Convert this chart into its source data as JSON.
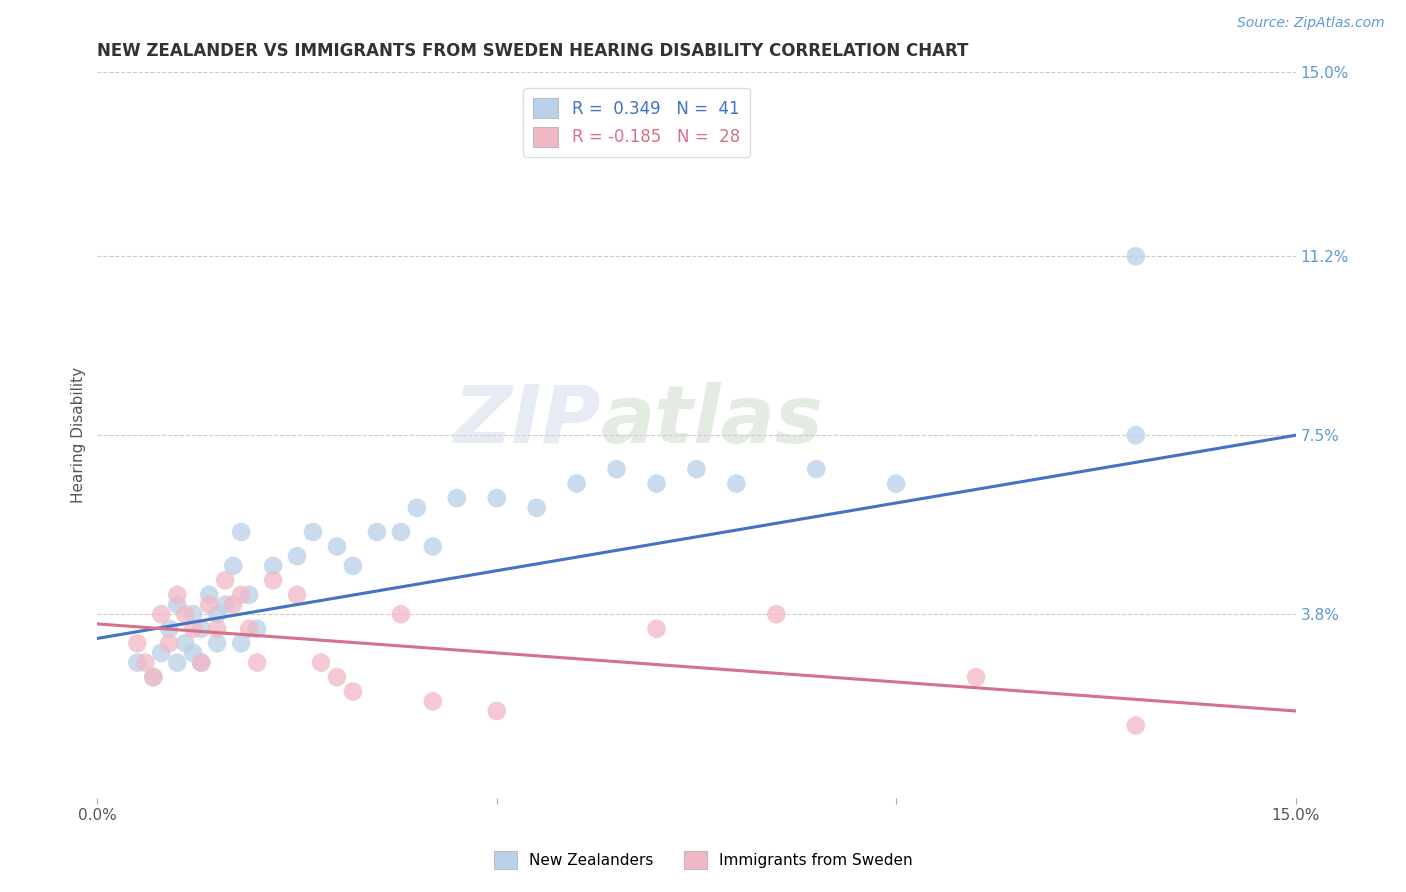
{
  "title": "NEW ZEALANDER VS IMMIGRANTS FROM SWEDEN HEARING DISABILITY CORRELATION CHART",
  "source": "Source: ZipAtlas.com",
  "ylabel": "Hearing Disability",
  "xlim": [
    0.0,
    0.15
  ],
  "ylim": [
    0.0,
    0.15
  ],
  "yticks_right": [
    0.15,
    0.112,
    0.075,
    0.038
  ],
  "ytick_labels_right": [
    "15.0%",
    "11.2%",
    "7.5%",
    "3.8%"
  ],
  "watermark_zip": "ZIP",
  "watermark_atlas": "atlas",
  "legend1_label": "R =  0.349   N =  41",
  "legend2_label": "R = -0.185   N =  28",
  "color_blue": "#B8D0E8",
  "color_pink": "#F2B8C6",
  "line_color_blue": "#4472C4",
  "line_color_pink": "#D4728A",
  "blue_scatter_x": [
    0.005,
    0.007,
    0.008,
    0.009,
    0.01,
    0.01,
    0.011,
    0.012,
    0.012,
    0.013,
    0.013,
    0.014,
    0.015,
    0.015,
    0.016,
    0.017,
    0.018,
    0.018,
    0.019,
    0.02,
    0.022,
    0.025,
    0.027,
    0.03,
    0.032,
    0.035,
    0.038,
    0.04,
    0.042,
    0.045,
    0.05,
    0.055,
    0.06,
    0.065,
    0.07,
    0.075,
    0.08,
    0.09,
    0.1,
    0.13,
    0.13
  ],
  "blue_scatter_y": [
    0.028,
    0.025,
    0.03,
    0.035,
    0.04,
    0.028,
    0.032,
    0.038,
    0.03,
    0.035,
    0.028,
    0.042,
    0.038,
    0.032,
    0.04,
    0.048,
    0.055,
    0.032,
    0.042,
    0.035,
    0.048,
    0.05,
    0.055,
    0.052,
    0.048,
    0.055,
    0.055,
    0.06,
    0.052,
    0.062,
    0.062,
    0.06,
    0.065,
    0.068,
    0.065,
    0.068,
    0.065,
    0.068,
    0.065,
    0.075,
    0.112
  ],
  "pink_scatter_x": [
    0.005,
    0.006,
    0.007,
    0.008,
    0.009,
    0.01,
    0.011,
    0.012,
    0.013,
    0.014,
    0.015,
    0.016,
    0.017,
    0.018,
    0.019,
    0.02,
    0.022,
    0.025,
    0.028,
    0.03,
    0.032,
    0.038,
    0.042,
    0.05,
    0.07,
    0.085,
    0.11,
    0.13
  ],
  "pink_scatter_y": [
    0.032,
    0.028,
    0.025,
    0.038,
    0.032,
    0.042,
    0.038,
    0.035,
    0.028,
    0.04,
    0.035,
    0.045,
    0.04,
    0.042,
    0.035,
    0.028,
    0.045,
    0.042,
    0.028,
    0.025,
    0.022,
    0.038,
    0.02,
    0.018,
    0.035,
    0.038,
    0.025,
    0.015
  ],
  "blue_trend_x": [
    0.0,
    0.15
  ],
  "blue_trend_y": [
    0.033,
    0.075
  ],
  "pink_trend_x": [
    0.0,
    0.15
  ],
  "pink_trend_y": [
    0.036,
    0.018
  ],
  "background_color": "#FFFFFF",
  "grid_color": "#CCCCCC",
  "title_color": "#333333",
  "axis_label_color": "#555555",
  "right_label_color": "#5B9BD5"
}
